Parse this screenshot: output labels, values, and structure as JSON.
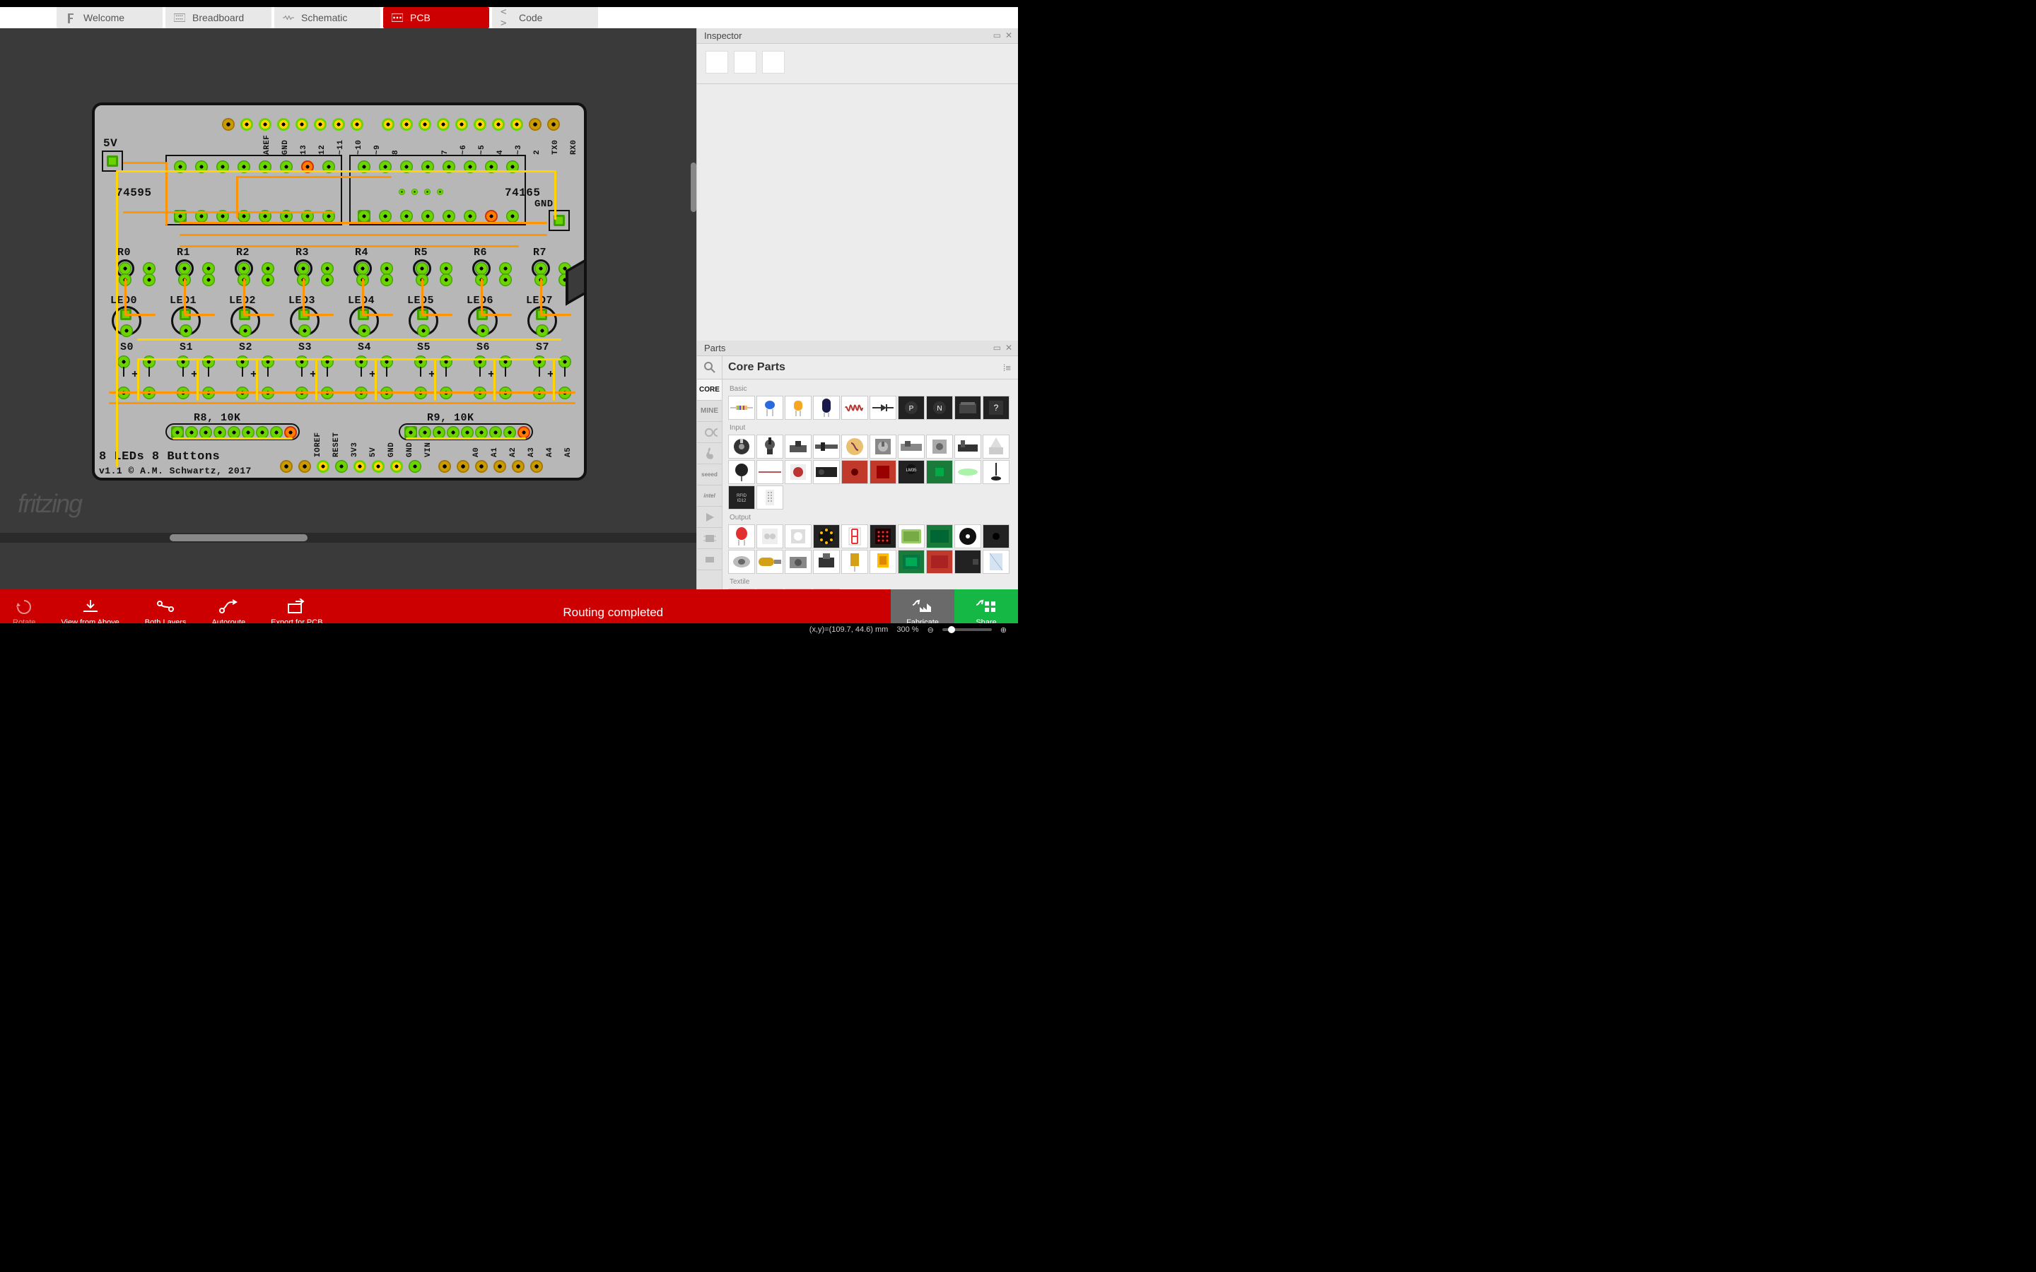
{
  "colors": {
    "accent": "#cc0000",
    "canvas_bg": "#3a3a3a",
    "board_bg": "#b7b7b7",
    "trace_top": "#ff9500",
    "trace_bottom": "#ffd400",
    "pad_green": "#6bd400",
    "pad_gold": "#c99b00",
    "share_green": "#15b845",
    "fabricate_gray": "#6a6a6a"
  },
  "tabs": [
    {
      "label": "Welcome",
      "icon": "f",
      "active": false
    },
    {
      "label": "Breadboard",
      "icon": "bb",
      "active": false
    },
    {
      "label": "Schematic",
      "icon": "sch",
      "active": false
    },
    {
      "label": "PCB",
      "icon": "pcb",
      "active": true
    },
    {
      "label": "Code",
      "icon": "code",
      "active": false
    }
  ],
  "logo": "fritzing",
  "toolbar": {
    "rotate": "Rotate",
    "view": "View from Above",
    "layers": "Both Layers",
    "autoroute": "Autoroute",
    "export": "Export for PCB",
    "routing_status": "Routing completed",
    "fabricate": "Fabricate",
    "share": "Share"
  },
  "status": {
    "coords": "(x,y)=(109.7, 44.6) mm",
    "zoom": "300 %"
  },
  "inspector": {
    "title": "Inspector"
  },
  "parts": {
    "title": "Parts",
    "bin": "Core Parts",
    "side_tabs": [
      "CORE",
      "MINE",
      "arduino",
      "sparkfun",
      "seeed",
      "intel",
      "play",
      "chip",
      "conn"
    ],
    "categories": {
      "basic": {
        "label": "Basic",
        "count": 10
      },
      "input": {
        "label": "Input",
        "count": 22
      },
      "output": {
        "label": "Output",
        "count": 20
      },
      "textile": {
        "label": "Textile",
        "count": 4
      }
    }
  },
  "board": {
    "title_line1": "8 LEDs 8 Buttons",
    "title_line2": "v1.1 © A.M. Schwartz, 2017",
    "labels": {
      "v5": "5V",
      "ic1": "74595",
      "ic2": "74165",
      "gnd": "GND",
      "tx": "TX0",
      "rx": "RX0",
      "aref": "AREF",
      "r_labels": [
        "R0",
        "R1",
        "R2",
        "R3",
        "R4",
        "R5",
        "R6",
        "R7"
      ],
      "led_labels": [
        "LED0",
        "LED1",
        "LED2",
        "LED3",
        "LED4",
        "LED5",
        "LED6",
        "LED7"
      ],
      "s_labels": [
        "S0",
        "S1",
        "S2",
        "S3",
        "S4",
        "S5",
        "S6",
        "S7"
      ],
      "rnet1": "R8, 10K",
      "rnet2": "R9, 10K",
      "top_pins": [
        "AREF",
        "GND",
        "13",
        "12",
        "~11",
        "~10",
        "~9",
        "8",
        "",
        "7",
        "~6",
        "~5",
        "4",
        "~3",
        "2",
        "TX0",
        "RX0"
      ],
      "bottom_pins": [
        "IOREF",
        "RESET",
        "3V3",
        "5V",
        "GND",
        "GND",
        "VIN",
        "",
        "A0",
        "A1",
        "A2",
        "A3",
        "A4",
        "A5"
      ]
    }
  }
}
